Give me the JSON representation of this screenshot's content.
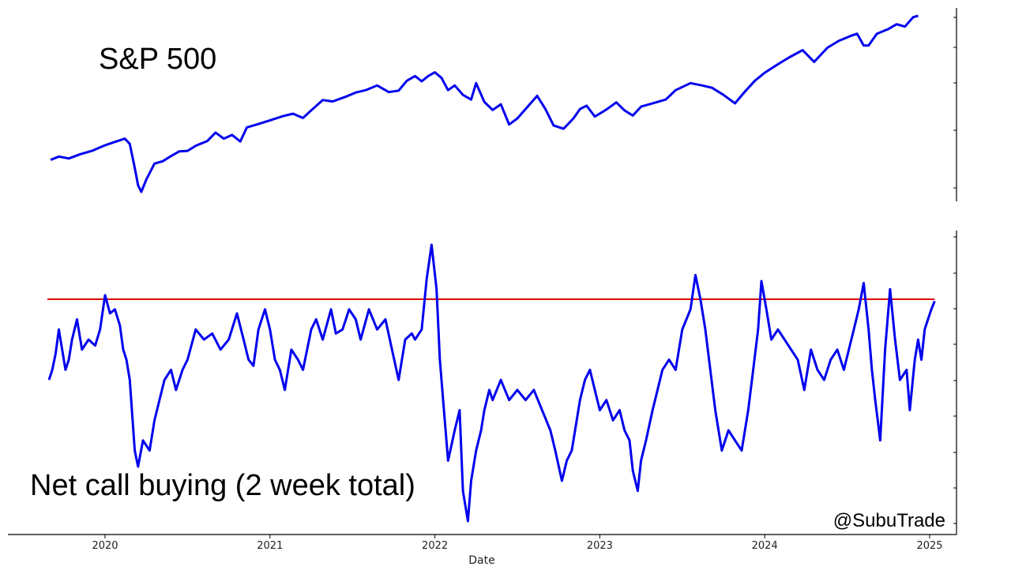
{
  "chart_data": [
    {
      "type": "line",
      "title": "S&P 500",
      "x_range": [
        2019.6,
        2025.3
      ],
      "y_range": [
        2000,
        6150
      ],
      "series": [
        {
          "color": "#0000ee",
          "points": [
            [
              2019.67,
              2920
            ],
            [
              2019.72,
              2990
            ],
            [
              2019.78,
              2950
            ],
            [
              2019.85,
              3040
            ],
            [
              2019.92,
              3110
            ],
            [
              2020.0,
              3230
            ],
            [
              2020.05,
              3290
            ],
            [
              2020.12,
              3370
            ],
            [
              2020.15,
              3260
            ],
            [
              2020.18,
              2750
            ],
            [
              2020.2,
              2380
            ],
            [
              2020.22,
              2240
            ],
            [
              2020.25,
              2500
            ],
            [
              2020.3,
              2840
            ],
            [
              2020.35,
              2890
            ],
            [
              2020.4,
              3000
            ],
            [
              2020.45,
              3100
            ],
            [
              2020.5,
              3110
            ],
            [
              2020.55,
              3220
            ],
            [
              2020.62,
              3320
            ],
            [
              2020.67,
              3500
            ],
            [
              2020.72,
              3370
            ],
            [
              2020.77,
              3450
            ],
            [
              2020.82,
              3310
            ],
            [
              2020.86,
              3610
            ],
            [
              2020.92,
              3670
            ],
            [
              2021.0,
              3760
            ],
            [
              2021.08,
              3850
            ],
            [
              2021.14,
              3900
            ],
            [
              2021.2,
              3810
            ],
            [
              2021.25,
              3970
            ],
            [
              2021.32,
              4190
            ],
            [
              2021.38,
              4160
            ],
            [
              2021.45,
              4250
            ],
            [
              2021.52,
              4350
            ],
            [
              2021.58,
              4400
            ],
            [
              2021.65,
              4500
            ],
            [
              2021.72,
              4360
            ],
            [
              2021.78,
              4390
            ],
            [
              2021.83,
              4600
            ],
            [
              2021.88,
              4700
            ],
            [
              2021.92,
              4590
            ],
            [
              2021.96,
              4700
            ],
            [
              2022.0,
              4780
            ],
            [
              2022.04,
              4660
            ],
            [
              2022.08,
              4400
            ],
            [
              2022.12,
              4500
            ],
            [
              2022.17,
              4300
            ],
            [
              2022.22,
              4200
            ],
            [
              2022.25,
              4550
            ],
            [
              2022.3,
              4150
            ],
            [
              2022.35,
              3980
            ],
            [
              2022.4,
              4100
            ],
            [
              2022.45,
              3670
            ],
            [
              2022.5,
              3800
            ],
            [
              2022.55,
              4000
            ],
            [
              2022.62,
              4280
            ],
            [
              2022.67,
              4000
            ],
            [
              2022.72,
              3650
            ],
            [
              2022.78,
              3580
            ],
            [
              2022.84,
              3800
            ],
            [
              2022.88,
              4000
            ],
            [
              2022.92,
              4070
            ],
            [
              2022.97,
              3840
            ],
            [
              2023.04,
              3990
            ],
            [
              2023.1,
              4140
            ],
            [
              2023.15,
              3970
            ],
            [
              2023.2,
              3860
            ],
            [
              2023.25,
              4050
            ],
            [
              2023.33,
              4130
            ],
            [
              2023.4,
              4200
            ],
            [
              2023.46,
              4400
            ],
            [
              2023.55,
              4550
            ],
            [
              2023.62,
              4500
            ],
            [
              2023.68,
              4450
            ],
            [
              2023.75,
              4300
            ],
            [
              2023.82,
              4120
            ],
            [
              2023.88,
              4370
            ],
            [
              2023.94,
              4600
            ],
            [
              2024.0,
              4770
            ],
            [
              2024.08,
              4950
            ],
            [
              2024.15,
              5100
            ],
            [
              2024.23,
              5250
            ],
            [
              2024.3,
              5000
            ],
            [
              2024.38,
              5300
            ],
            [
              2024.45,
              5450
            ],
            [
              2024.52,
              5550
            ],
            [
              2024.56,
              5600
            ],
            [
              2024.6,
              5350
            ],
            [
              2024.63,
              5350
            ],
            [
              2024.68,
              5600
            ],
            [
              2024.75,
              5700
            ],
            [
              2024.8,
              5800
            ],
            [
              2024.85,
              5750
            ],
            [
              2024.9,
              5950
            ],
            [
              2024.93,
              5980
            ]
          ]
        }
      ]
    },
    {
      "type": "line",
      "title": "Net call buying (2 week total)",
      "xlabel": "Date",
      "x_ticks": [
        "2020",
        "2021",
        "2022",
        "2023",
        "2024",
        "2025"
      ],
      "x_range": [
        2019.6,
        2025.3
      ],
      "y_range": [
        -80,
        65
      ],
      "threshold": 35,
      "threshold_color": "#dd0000",
      "series": [
        {
          "color": "#0000ee",
          "points": [
            [
              2019.66,
              -5
            ],
            [
              2019.68,
              0
            ],
            [
              2019.7,
              8
            ],
            [
              2019.72,
              20
            ],
            [
              2019.74,
              10
            ],
            [
              2019.76,
              0
            ],
            [
              2019.78,
              5
            ],
            [
              2019.8,
              15
            ],
            [
              2019.83,
              25
            ],
            [
              2019.86,
              10
            ],
            [
              2019.9,
              15
            ],
            [
              2019.94,
              12
            ],
            [
              2019.97,
              20
            ],
            [
              2020.0,
              37
            ],
            [
              2020.03,
              28
            ],
            [
              2020.06,
              30
            ],
            [
              2020.09,
              22
            ],
            [
              2020.11,
              10
            ],
            [
              2020.13,
              5
            ],
            [
              2020.15,
              -5
            ],
            [
              2020.18,
              -40
            ],
            [
              2020.2,
              -48
            ],
            [
              2020.23,
              -35
            ],
            [
              2020.27,
              -40
            ],
            [
              2020.3,
              -25
            ],
            [
              2020.33,
              -15
            ],
            [
              2020.36,
              -5
            ],
            [
              2020.4,
              0
            ],
            [
              2020.43,
              -10
            ],
            [
              2020.47,
              0
            ],
            [
              2020.5,
              5
            ],
            [
              2020.55,
              20
            ],
            [
              2020.6,
              15
            ],
            [
              2020.65,
              18
            ],
            [
              2020.7,
              10
            ],
            [
              2020.75,
              15
            ],
            [
              2020.8,
              28
            ],
            [
              2020.84,
              15
            ],
            [
              2020.87,
              5
            ],
            [
              2020.9,
              2
            ],
            [
              2020.93,
              20
            ],
            [
              2020.97,
              30
            ],
            [
              2021.0,
              20
            ],
            [
              2021.03,
              5
            ],
            [
              2021.06,
              0
            ],
            [
              2021.09,
              -10
            ],
            [
              2021.13,
              10
            ],
            [
              2021.17,
              5
            ],
            [
              2021.2,
              0
            ],
            [
              2021.25,
              20
            ],
            [
              2021.28,
              25
            ],
            [
              2021.32,
              15
            ],
            [
              2021.37,
              30
            ],
            [
              2021.4,
              18
            ],
            [
              2021.44,
              20
            ],
            [
              2021.48,
              30
            ],
            [
              2021.52,
              25
            ],
            [
              2021.55,
              15
            ],
            [
              2021.6,
              30
            ],
            [
              2021.65,
              20
            ],
            [
              2021.7,
              25
            ],
            [
              2021.74,
              10
            ],
            [
              2021.78,
              -5
            ],
            [
              2021.82,
              15
            ],
            [
              2021.86,
              18
            ],
            [
              2021.88,
              15
            ],
            [
              2021.92,
              20
            ],
            [
              2021.95,
              45
            ],
            [
              2021.98,
              62
            ],
            [
              2022.01,
              40
            ],
            [
              2022.03,
              5
            ],
            [
              2022.06,
              -25
            ],
            [
              2022.08,
              -45
            ],
            [
              2022.12,
              -30
            ],
            [
              2022.15,
              -20
            ],
            [
              2022.17,
              -60
            ],
            [
              2022.2,
              -75
            ],
            [
              2022.22,
              -55
            ],
            [
              2022.25,
              -40
            ],
            [
              2022.28,
              -30
            ],
            [
              2022.3,
              -20
            ],
            [
              2022.33,
              -10
            ],
            [
              2022.35,
              -15
            ],
            [
              2022.4,
              -5
            ],
            [
              2022.45,
              -15
            ],
            [
              2022.5,
              -10
            ],
            [
              2022.55,
              -15
            ],
            [
              2022.6,
              -10
            ],
            [
              2022.65,
              -20
            ],
            [
              2022.7,
              -30
            ],
            [
              2022.73,
              -40
            ],
            [
              2022.77,
              -55
            ],
            [
              2022.8,
              -45
            ],
            [
              2022.83,
              -40
            ],
            [
              2022.85,
              -30
            ],
            [
              2022.88,
              -15
            ],
            [
              2022.91,
              -5
            ],
            [
              2022.94,
              0
            ],
            [
              2022.97,
              -10
            ],
            [
              2023.0,
              -20
            ],
            [
              2023.04,
              -15
            ],
            [
              2023.08,
              -25
            ],
            [
              2023.12,
              -20
            ],
            [
              2023.15,
              -30
            ],
            [
              2023.18,
              -35
            ],
            [
              2023.2,
              -50
            ],
            [
              2023.23,
              -60
            ],
            [
              2023.25,
              -45
            ],
            [
              2023.28,
              -35
            ],
            [
              2023.32,
              -20
            ],
            [
              2023.35,
              -10
            ],
            [
              2023.38,
              0
            ],
            [
              2023.42,
              5
            ],
            [
              2023.46,
              0
            ],
            [
              2023.5,
              20
            ],
            [
              2023.55,
              30
            ],
            [
              2023.58,
              47
            ],
            [
              2023.61,
              35
            ],
            [
              2023.64,
              20
            ],
            [
              2023.67,
              0
            ],
            [
              2023.7,
              -20
            ],
            [
              2023.74,
              -40
            ],
            [
              2023.78,
              -30
            ],
            [
              2023.82,
              -35
            ],
            [
              2023.86,
              -40
            ],
            [
              2023.9,
              -20
            ],
            [
              2023.93,
              0
            ],
            [
              2023.96,
              20
            ],
            [
              2023.98,
              44
            ],
            [
              2024.01,
              30
            ],
            [
              2024.04,
              15
            ],
            [
              2024.08,
              20
            ],
            [
              2024.12,
              15
            ],
            [
              2024.16,
              10
            ],
            [
              2024.2,
              5
            ],
            [
              2024.24,
              -10
            ],
            [
              2024.28,
              10
            ],
            [
              2024.32,
              0
            ],
            [
              2024.36,
              -5
            ],
            [
              2024.4,
              5
            ],
            [
              2024.44,
              10
            ],
            [
              2024.48,
              0
            ],
            [
              2024.51,
              10
            ],
            [
              2024.54,
              20
            ],
            [
              2024.57,
              30
            ],
            [
              2024.6,
              43
            ],
            [
              2024.63,
              20
            ],
            [
              2024.65,
              0
            ],
            [
              2024.67,
              -15
            ],
            [
              2024.7,
              -35
            ],
            [
              2024.73,
              10
            ],
            [
              2024.76,
              40
            ],
            [
              2024.79,
              15
            ],
            [
              2024.82,
              -5
            ],
            [
              2024.86,
              0
            ],
            [
              2024.88,
              -20
            ],
            [
              2024.91,
              5
            ],
            [
              2024.93,
              15
            ],
            [
              2024.95,
              5
            ],
            [
              2024.97,
              20
            ],
            [
              2024.99,
              25
            ],
            [
              2025.01,
              30
            ],
            [
              2025.03,
              34
            ]
          ]
        }
      ]
    }
  ],
  "credit": "@SubuTrade"
}
